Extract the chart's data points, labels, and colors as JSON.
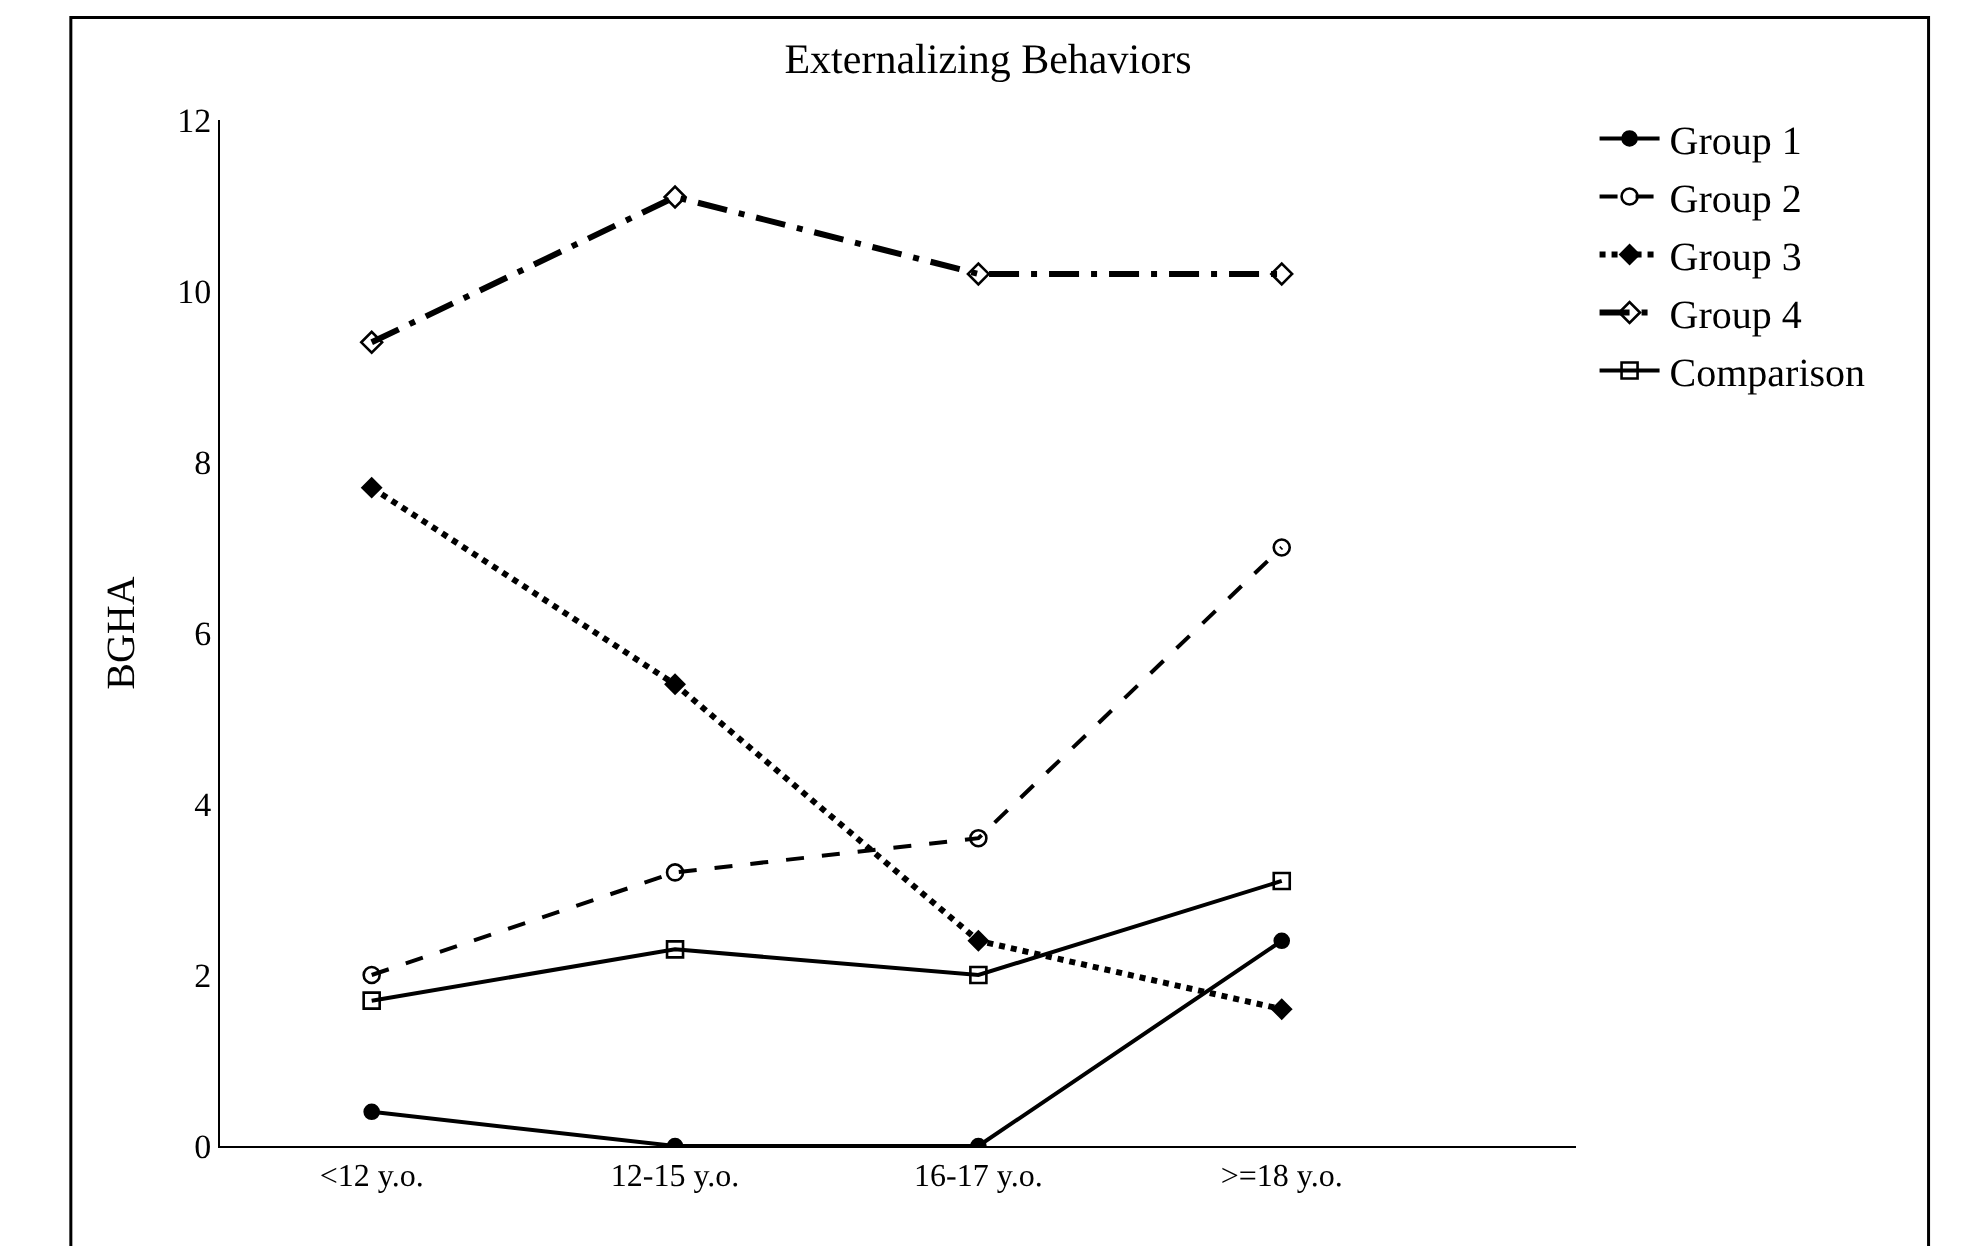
{
  "chart_data": {
    "type": "line",
    "title": "Externalizing Behaviors",
    "ylabel": "BGHA",
    "categories": [
      "<12 y.o.",
      "12-15 y.o.",
      "16-17 y.o.",
      ">=18 y.o."
    ],
    "series": [
      {
        "name": "Group 1",
        "color": "#000000",
        "values": [
          0.4,
          0,
          0,
          2.4
        ],
        "marker": "circle",
        "line_style": "solid"
      },
      {
        "name": "Group 2",
        "color": "#000000",
        "values": [
          2.0,
          3.2,
          3.6,
          7.0
        ],
        "marker": "circle-open",
        "line_style": "dashed"
      },
      {
        "name": "Group 3",
        "color": "#000000",
        "values": [
          7.7,
          5.4,
          2.4,
          1.6
        ],
        "marker": "diamond",
        "line_style": "dotted"
      },
      {
        "name": "Group 4",
        "color": "#000000",
        "values": [
          9.4,
          11.1,
          10.2,
          10.2
        ],
        "marker": "diamond-open",
        "line_style": "dashdot"
      },
      {
        "name": "Comparison",
        "color": "#000000",
        "values": [
          1.7,
          2.3,
          2.0,
          3.1
        ],
        "marker": "square-open",
        "line_style": "solid"
      }
    ],
    "ylim": [
      0,
      12
    ],
    "yticks": [
      0,
      2,
      4,
      6,
      8,
      10,
      12
    ],
    "grid": false,
    "legend": "top right"
  }
}
